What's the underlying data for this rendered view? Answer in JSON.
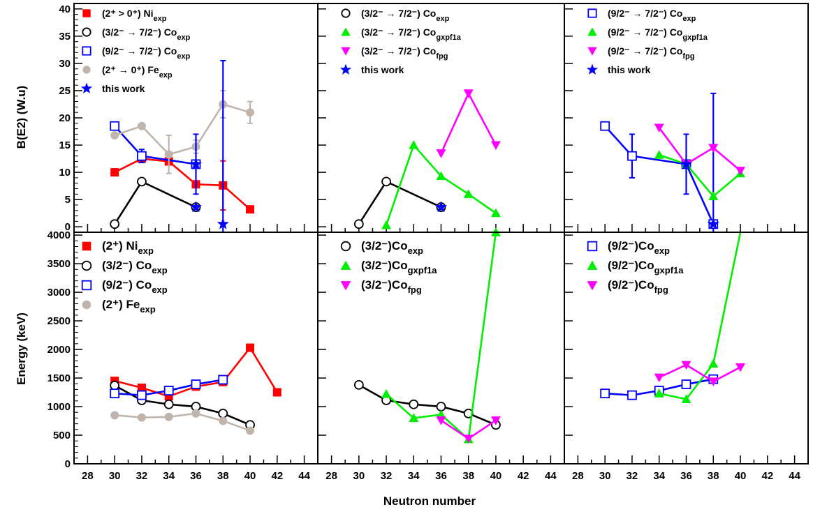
{
  "figure": {
    "xlabel": "Neutron number",
    "ylabel_top": "B(E2) (W.u)",
    "ylabel_bottom": "Energy (keV)"
  },
  "chart_data": [
    {
      "type": "line",
      "panel": "top-left",
      "xlim": [
        27,
        45
      ],
      "ylim": [
        -1,
        41
      ],
      "xticks": [
        28,
        30,
        32,
        34,
        36,
        38,
        40,
        42,
        44
      ],
      "yticks": [
        0,
        5,
        10,
        15,
        20,
        25,
        30,
        35,
        40
      ],
      "legend_position": "top-left",
      "series": [
        {
          "name": "(2⁺ > 0⁺) Ni",
          "subscript": "exp",
          "color": "#ff0000",
          "marker": "square-filled",
          "x": [
            30,
            32,
            34,
            36,
            38,
            40
          ],
          "y": [
            10,
            12.5,
            12,
            7.8,
            7.6,
            3.2
          ],
          "err": [
            0,
            0,
            0,
            0,
            4.5,
            0
          ]
        },
        {
          "name": "(3/2⁻ → 7/2⁻) Co",
          "subscript": "exp",
          "color": "#000000",
          "marker": "circle-open",
          "x": [
            30,
            32,
            36
          ],
          "y": [
            0.5,
            8.3,
            3.6
          ]
        },
        {
          "name": "(9/2⁻ → 7/2⁻) Co",
          "subscript": "exp",
          "color": "#0000ff",
          "marker": "square-open",
          "x": [
            30,
            32,
            36
          ],
          "y": [
            18.5,
            13,
            11.5
          ],
          "err": [
            0,
            1.2,
            0
          ]
        },
        {
          "name": "(2⁺ → 0⁺) Fe",
          "subscript": "exp",
          "color": "#bfb5ad",
          "marker": "circle-filled",
          "x": [
            30,
            32,
            34,
            36,
            38,
            40
          ],
          "y": [
            16.8,
            18.5,
            13.3,
            14.7,
            22.5,
            21
          ],
          "err": [
            0,
            0,
            3.5,
            1.2,
            2.5,
            2
          ]
        },
        {
          "name": "this work",
          "subscript": "",
          "color": "#0000ff",
          "marker": "star",
          "line": false,
          "x": [
            36,
            36,
            38
          ],
          "y": [
            11.5,
            3.6,
            0.5
          ],
          "err": [
            5.5,
            0,
            30
          ]
        }
      ]
    },
    {
      "type": "line",
      "panel": "top-middle",
      "xlim": [
        27,
        45
      ],
      "ylim": [
        -1,
        41
      ],
      "xticks": [
        28,
        30,
        32,
        34,
        36,
        38,
        40,
        42,
        44
      ],
      "legend_position": "top-left",
      "series": [
        {
          "name": "(3/2⁻ → 7/2⁻) Co",
          "subscript": "exp",
          "color": "#000000",
          "marker": "circle-open",
          "x": [
            30,
            32,
            36
          ],
          "y": [
            0.5,
            8.3,
            3.6
          ]
        },
        {
          "name": "(3/2⁻ → 7/2⁻) Co",
          "subscript": "gxpf1a",
          "color": "#00ee00",
          "marker": "triangle-up",
          "x": [
            32,
            34,
            36,
            38,
            40
          ],
          "y": [
            0.3,
            15,
            9.3,
            6,
            2.5
          ]
        },
        {
          "name": "(3/2⁻ → 7/2⁻) Co",
          "subscript": "fpg",
          "color": "#ff00ff",
          "marker": "triangle-down",
          "x": [
            36,
            38,
            40
          ],
          "y": [
            13.5,
            24.5,
            15
          ]
        },
        {
          "name": "this work",
          "subscript": "",
          "color": "#0000ff",
          "marker": "star",
          "line": false,
          "x": [
            36
          ],
          "y": [
            3.6
          ]
        }
      ]
    },
    {
      "type": "line",
      "panel": "top-right",
      "xlim": [
        27,
        45
      ],
      "ylim": [
        -1,
        41
      ],
      "xticks": [
        28,
        30,
        32,
        34,
        36,
        38,
        40,
        42,
        44
      ],
      "legend_position": "top-left",
      "series": [
        {
          "name": "(9/2⁻ → 7/2⁻) Co",
          "subscript": "exp",
          "color": "#0000ff",
          "marker": "square-open",
          "x": [
            30,
            32,
            36,
            38
          ],
          "y": [
            18.5,
            13,
            11.5,
            0.5
          ],
          "err": [
            0,
            4,
            0,
            24
          ]
        },
        {
          "name": "(9/2⁻ → 7/2⁻) Co",
          "subscript": "gxpf1a",
          "color": "#00ee00",
          "marker": "triangle-up",
          "x": [
            34,
            36,
            38,
            40
          ],
          "y": [
            13.2,
            11.5,
            5.6,
            9.8
          ]
        },
        {
          "name": "(9/2⁻ → 7/2⁻) Co",
          "subscript": "fpg",
          "color": "#ff00ff",
          "marker": "triangle-down",
          "x": [
            34,
            36,
            38,
            40
          ],
          "y": [
            18.2,
            11.5,
            14.5,
            10.3
          ]
        },
        {
          "name": "this work",
          "subscript": "",
          "color": "#0000ff",
          "marker": "star",
          "line": false,
          "x": [
            36,
            38
          ],
          "y": [
            11.5,
            0.5
          ],
          "err": [
            5.5,
            0
          ]
        }
      ]
    },
    {
      "type": "line",
      "panel": "bottom-left",
      "xlim": [
        27,
        45
      ],
      "ylim": [
        0,
        4050
      ],
      "xticks": [
        28,
        30,
        32,
        34,
        36,
        38,
        40,
        42,
        44
      ],
      "yticks": [
        0,
        500,
        1000,
        1500,
        2000,
        2500,
        3000,
        3500,
        4000
      ],
      "legend_position": "top-left",
      "series": [
        {
          "name": "(2⁺) Ni",
          "subscript": "exp",
          "color": "#ff0000",
          "marker": "square-filled",
          "x": [
            30,
            32,
            34,
            36,
            38,
            40,
            42
          ],
          "y": [
            1450,
            1330,
            1180,
            1350,
            1430,
            2030,
            1250
          ]
        },
        {
          "name": "(3/2⁻) Co",
          "subscript": "exp",
          "color": "#000000",
          "marker": "circle-open",
          "x": [
            30,
            32,
            34,
            36,
            38,
            40
          ],
          "y": [
            1370,
            1110,
            1040,
            1000,
            880,
            680
          ]
        },
        {
          "name": "(9/2⁻) Co",
          "subscript": "exp",
          "color": "#0000ff",
          "marker": "square-open",
          "x": [
            30,
            32,
            34,
            36,
            38
          ],
          "y": [
            1230,
            1200,
            1280,
            1390,
            1470
          ]
        },
        {
          "name": "(2⁺) Fe",
          "subscript": "exp",
          "color": "#bfb5ad",
          "marker": "circle-filled",
          "x": [
            30,
            32,
            34,
            36,
            38,
            40
          ],
          "y": [
            850,
            810,
            820,
            880,
            750,
            580
          ]
        }
      ]
    },
    {
      "type": "line",
      "panel": "bottom-middle",
      "xlim": [
        27,
        45
      ],
      "ylim": [
        0,
        4050
      ],
      "xticks": [
        28,
        30,
        32,
        34,
        36,
        38,
        40,
        42,
        44
      ],
      "legend_position": "top-left",
      "series": [
        {
          "name": "(3/2⁻)Co",
          "subscript": "exp",
          "color": "#000000",
          "marker": "circle-open",
          "x": [
            30,
            32,
            34,
            36,
            38,
            40
          ],
          "y": [
            1380,
            1110,
            1040,
            1000,
            880,
            680
          ]
        },
        {
          "name": "(3/2⁻)Co",
          "subscript": "gxpf1a",
          "color": "#00ee00",
          "marker": "triangle-up",
          "x": [
            32,
            34,
            36,
            38,
            40
          ],
          "y": [
            1220,
            800,
            860,
            430,
            4050
          ]
        },
        {
          "name": "(3/2⁻)Co",
          "subscript": "fpg",
          "color": "#ff00ff",
          "marker": "triangle-down",
          "x": [
            36,
            38,
            40
          ],
          "y": [
            760,
            440,
            760
          ]
        }
      ]
    },
    {
      "type": "line",
      "panel": "bottom-right",
      "xlim": [
        27,
        45
      ],
      "ylim": [
        0,
        4050
      ],
      "xticks": [
        28,
        30,
        32,
        34,
        36,
        38,
        40,
        42,
        44
      ],
      "legend_position": "top-left",
      "series": [
        {
          "name": "(9/2⁻)Co",
          "subscript": "exp",
          "color": "#0000ff",
          "marker": "square-open",
          "x": [
            30,
            32,
            34,
            36,
            38
          ],
          "y": [
            1230,
            1200,
            1280,
            1390,
            1480
          ]
        },
        {
          "name": "(9/2⁻)Co",
          "subscript": "gxpf1a",
          "color": "#00ee00",
          "marker": "triangle-up",
          "x": [
            34,
            36,
            38,
            40
          ],
          "y": [
            1230,
            1130,
            1750,
            4100
          ]
        },
        {
          "name": "(9/2⁻)Co",
          "subscript": "fpg",
          "color": "#ff00ff",
          "marker": "triangle-down",
          "x": [
            34,
            36,
            38,
            40
          ],
          "y": [
            1510,
            1730,
            1440,
            1690
          ]
        }
      ]
    }
  ]
}
